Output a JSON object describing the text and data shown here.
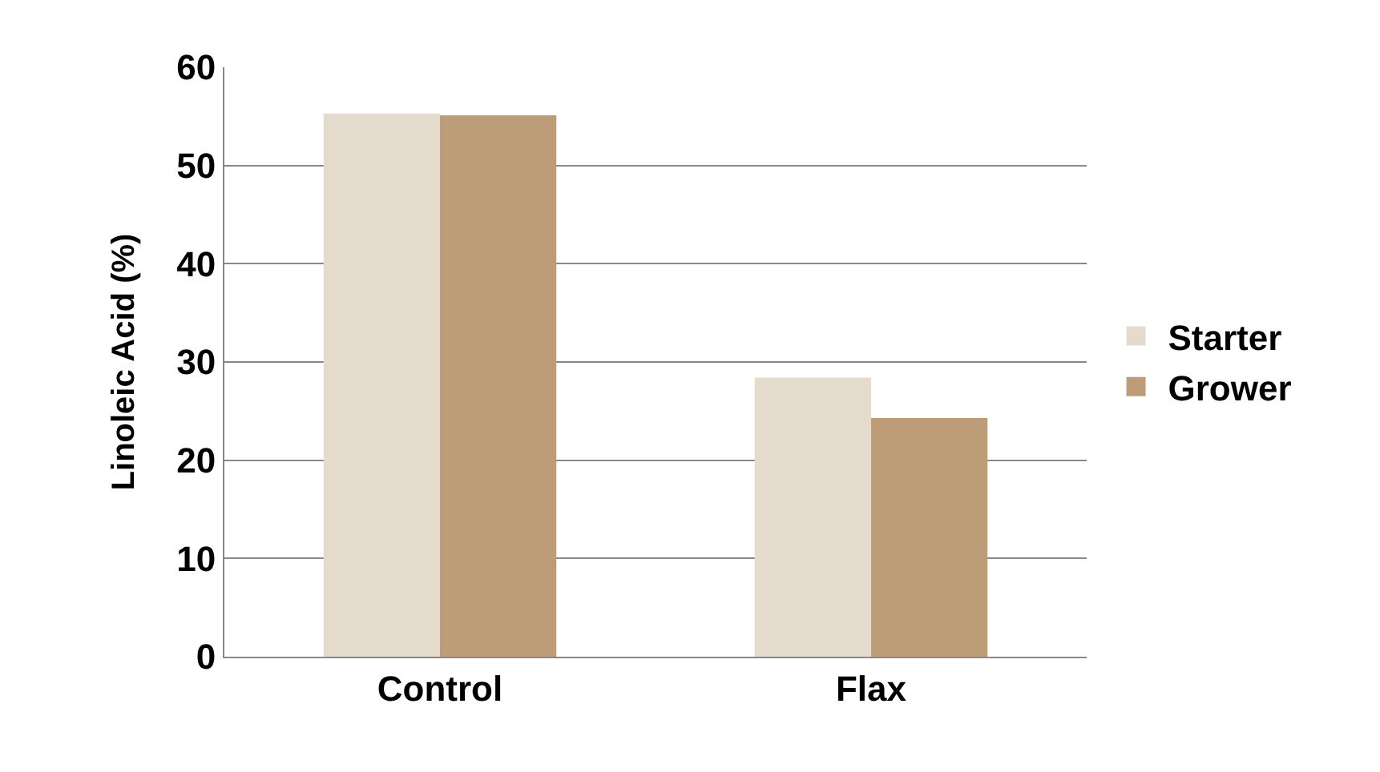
{
  "chart_data": {
    "type": "bar",
    "ylabel": "Linoleic Acid (%)",
    "categories": [
      "Control",
      "Flax"
    ],
    "series": [
      {
        "name": "Starter",
        "color": "#e5dbcd",
        "values": [
          55.3,
          28.4
        ]
      },
      {
        "name": "Grower",
        "color": "#bc9d78",
        "values": [
          55.1,
          24.3
        ]
      }
    ],
    "ylim": [
      0,
      60
    ],
    "yticks": [
      0,
      10,
      20,
      30,
      40,
      50,
      60
    ],
    "grid": "y",
    "legend": "right"
  }
}
